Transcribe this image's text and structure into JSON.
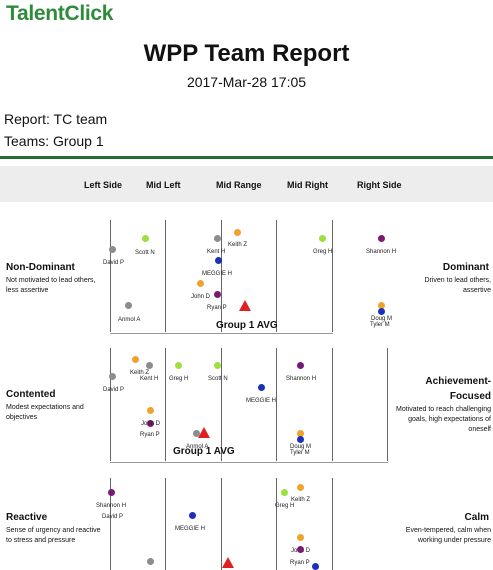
{
  "header": {
    "brand": "TalentClick",
    "title": "WPP Team Report",
    "timestamp": "2017-Mar-28 17:05",
    "report": "Report: TC team",
    "teams": "Teams: Group 1"
  },
  "columns": [
    "Left Side",
    "Mid Left",
    "Mid Range",
    "Mid Right",
    "Right Side"
  ],
  "colors": {
    "green": "#9be03d",
    "gray": "#8c8c8c",
    "orange": "#f0a22a",
    "blue": "#1b2fb8",
    "purple": "#7b1a74",
    "triangle": "#e02020",
    "rule": "#256d2c"
  },
  "sections": [
    {
      "left_title": "Non-Dominant",
      "left_desc": "Not motivated to lead others, less assertive",
      "right_title": "Dominant",
      "right_desc": "Driven to lead others, assertive",
      "avg_label": "Group 1 AVG",
      "people": [
        {
          "name": "David P",
          "color": "gray"
        },
        {
          "name": "Scott N",
          "color": "green"
        },
        {
          "name": "Keith Z",
          "color": "orange"
        },
        {
          "name": "Kent H",
          "color": "gray"
        },
        {
          "name": "MEGGIE H",
          "color": "blue"
        },
        {
          "name": "John D",
          "color": "orange"
        },
        {
          "name": "Ryan P",
          "color": "purple"
        },
        {
          "name": "Anmol A",
          "color": "gray"
        },
        {
          "name": "Greg H",
          "color": "green"
        },
        {
          "name": "Shannon H",
          "color": "purple"
        },
        {
          "name": "Doug M",
          "color": "orange"
        },
        {
          "name": "Tyler M",
          "color": "blue"
        }
      ]
    },
    {
      "left_title": "Contented",
      "left_desc": "Modest expectations and objectives",
      "right_title": "Achievement-Focused",
      "right_title_1": "Achievement-",
      "right_title_2": "Focused",
      "right_desc": "Motivated to reach challenging goals, high expectations of oneself",
      "avg_label": "Group 1 AVG",
      "people": [
        {
          "name": "David P",
          "color": "gray"
        },
        {
          "name": "Keith Z",
          "color": "orange"
        },
        {
          "name": "Kent H",
          "color": "gray"
        },
        {
          "name": "Greg H",
          "color": "green"
        },
        {
          "name": "Scott N",
          "color": "green"
        },
        {
          "name": "Shannon H",
          "color": "purple"
        },
        {
          "name": "MEGGIE H",
          "color": "blue"
        },
        {
          "name": "John D",
          "color": "orange"
        },
        {
          "name": "Ryan P",
          "color": "purple"
        },
        {
          "name": "Anmol A",
          "color": "gray"
        },
        {
          "name": "Doug M",
          "color": "orange"
        },
        {
          "name": "Tyler M",
          "color": "blue"
        }
      ]
    },
    {
      "left_title": "Reactive",
      "left_desc": "Sense of urgency and reactive to stress and pressure",
      "right_title": "Calm",
      "right_desc": "Even-tempered, calm when working under pressure",
      "people": [
        {
          "name": "Shannon H",
          "color": "purple"
        },
        {
          "name": "David P",
          "color": "gray"
        },
        {
          "name": "MEGGIE H",
          "color": "blue"
        },
        {
          "name": "Keith Z",
          "color": "orange"
        },
        {
          "name": "Greg H",
          "color": "green"
        },
        {
          "name": "John D",
          "color": "orange"
        },
        {
          "name": "Ryan P",
          "color": "purple"
        }
      ]
    }
  ]
}
